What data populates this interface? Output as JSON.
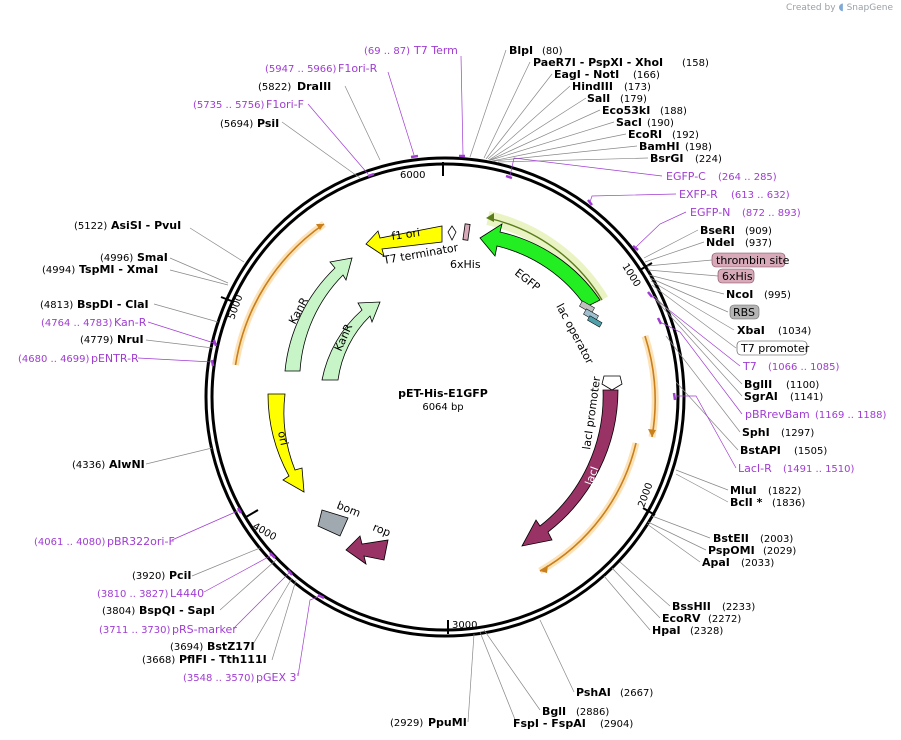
{
  "header": {
    "credit_prefix": "Created by",
    "credit_brand": "SnapGene"
  },
  "plasmid": {
    "name": "pET-His-E1GFP",
    "length_label": "6064 bp",
    "length": 6064
  },
  "ticks": [
    "1000",
    "2000",
    "3000",
    "4000",
    "5000",
    "6000"
  ],
  "sites_left": [
    {
      "pos": "(5822)",
      "name": "DraIII"
    },
    {
      "pos": "(5694)",
      "name": "PsiI"
    },
    {
      "pos": "(5122)",
      "name": "AsiSI - PvuI"
    },
    {
      "pos": "(4996)",
      "name": "SmaI"
    },
    {
      "pos": "(4994)",
      "name": "TspMI - XmaI"
    },
    {
      "pos": "(4813)",
      "name": "BspDI - ClaI"
    },
    {
      "pos": "(4779)",
      "name": "NruI"
    },
    {
      "pos": "(4336)",
      "name": "AlwNI"
    },
    {
      "pos": "(3920)",
      "name": "PciI"
    },
    {
      "pos": "(3804)",
      "name": "BspQI - SapI"
    },
    {
      "pos": "(3694)",
      "name": "BstZ17I"
    },
    {
      "pos": "(3668)",
      "name": "PflFI - Tth111I"
    },
    {
      "pos": "(2929)",
      "name": "PpuMI"
    }
  ],
  "sites_right": [
    {
      "name": "BlpI",
      "pos": "(80)"
    },
    {
      "name": "PaeR7I - PspXI - XhoI",
      "pos": "(158)"
    },
    {
      "name": "EagI - NotI",
      "pos": "(166)"
    },
    {
      "name": "HindIII",
      "pos": "(173)"
    },
    {
      "name": "SalI",
      "pos": "(179)"
    },
    {
      "name": "Eco53kI",
      "pos": "(188)"
    },
    {
      "name": "SacI",
      "pos": "(190)"
    },
    {
      "name": "EcoRI",
      "pos": "(192)"
    },
    {
      "name": "BamHI",
      "pos": "(198)"
    },
    {
      "name": "BsrGI",
      "pos": "(224)"
    },
    {
      "name": "BseRI",
      "pos": "(909)"
    },
    {
      "name": "NdeI",
      "pos": "(937)"
    },
    {
      "name": "NcoI",
      "pos": "(995)"
    },
    {
      "name": "XbaI",
      "pos": "(1034)"
    },
    {
      "name": "BglII",
      "pos": "(1100)"
    },
    {
      "name": "SgrAI",
      "pos": "(1141)"
    },
    {
      "name": "SphI",
      "pos": "(1297)"
    },
    {
      "name": "BstAPI",
      "pos": "(1505)"
    },
    {
      "name": "MluI",
      "pos": "(1822)"
    },
    {
      "name": "BclI *",
      "pos": "(1836)"
    },
    {
      "name": "BstEII",
      "pos": "(2003)"
    },
    {
      "name": "PspOMI",
      "pos": "(2029)"
    },
    {
      "name": "ApaI",
      "pos": "(2033)"
    },
    {
      "name": "BssHII",
      "pos": "(2233)"
    },
    {
      "name": "EcoRV",
      "pos": "(2272)"
    },
    {
      "name": "HpaI",
      "pos": "(2328)"
    },
    {
      "name": "PshAI",
      "pos": "(2667)"
    },
    {
      "name": "BglI",
      "pos": "(2886)"
    },
    {
      "name": "FspI - FspAI",
      "pos": "(2904)"
    }
  ],
  "primers": [
    {
      "pos": "(69 .. 87)",
      "name": "T7 Term"
    },
    {
      "pos": "(5947 .. 5966)",
      "name": "F1ori-R"
    },
    {
      "pos": "(5735 .. 5756)",
      "name": "F1ori-F"
    },
    {
      "name": "EGFP-C",
      "pos": "(264 .. 285)"
    },
    {
      "name": "EXFP-R",
      "pos": "(613 .. 632)"
    },
    {
      "name": "EGFP-N",
      "pos": "(872 .. 893)"
    },
    {
      "name": "T7",
      "pos": "(1066 .. 1085)"
    },
    {
      "name": "pBRrevBam",
      "pos": "(1169 .. 1188)"
    },
    {
      "name": "LacI-R",
      "pos": "(1491 .. 1510)"
    },
    {
      "pos": "(4764 .. 4783)",
      "name": "Kan-R"
    },
    {
      "pos": "(4680 .. 4699)",
      "name": "pENTR-R"
    },
    {
      "pos": "(4061 .. 4080)",
      "name": "pBR322ori-F"
    },
    {
      "pos": "(3810 .. 3827)",
      "name": "L4440"
    },
    {
      "pos": "(3711 .. 3730)",
      "name": "pRS-marker"
    },
    {
      "pos": "(3548 .. 3570)",
      "name": "pGEX 3'"
    }
  ],
  "boxed_features": [
    {
      "name": "thrombin site",
      "color": "#d8a9b8"
    },
    {
      "name": "6xHis",
      "color": "#d8a9b8"
    },
    {
      "name": "RBS",
      "color": "#b4b4b4"
    },
    {
      "name": "T7 promoter",
      "color": "#ffffff"
    }
  ],
  "features": {
    "f1_ori": "f1 ori",
    "t7_terminator": "T7 terminator",
    "his6": "6xHis",
    "egfp": "EGFP",
    "lac_operator": "lac operator",
    "laci_promoter": "lacI promoter",
    "laci": "lacI",
    "rop": "rop",
    "bom": "bom",
    "ori": "ori",
    "kanr_outer": "KanR",
    "kanr_inner": "KanR"
  },
  "colors": {
    "primer": "#a03cd2",
    "f1_ori": "#ffff00",
    "ori": "#ffff00",
    "kanr": "#c8f5c8",
    "egfp": "#22ee22",
    "laci": "#993366",
    "rop": "#993366",
    "bom": "#a0a8b0",
    "orf": "#f5a623"
  }
}
